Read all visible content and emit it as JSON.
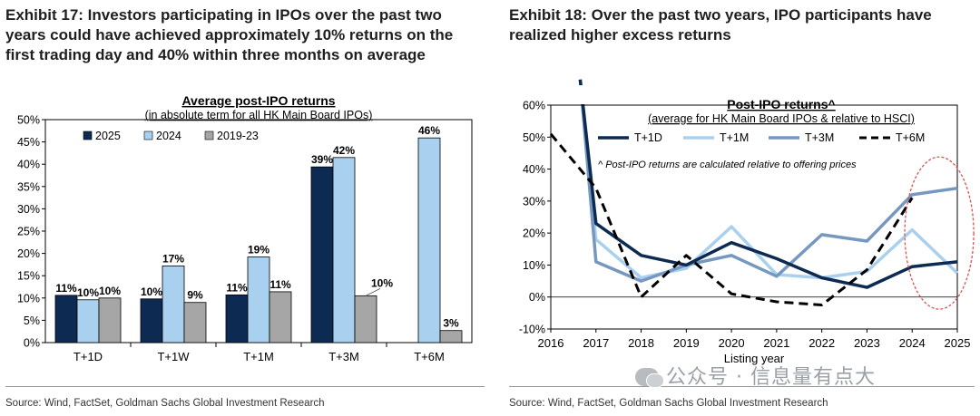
{
  "left": {
    "title": "Exhibit 17: Investors participating in IPOs over the past two years could have achieved approximately 10% returns on the first trading day and 40% within three months on average",
    "source": "Source: Wind, FactSet, Goldman Sachs Global Investment Research",
    "chart_data": {
      "type": "bar",
      "title": "Average post-IPO returns",
      "subtitle": "(in absolute term for all HK Main Board IPOs)",
      "categories": [
        "T+1D",
        "T+1W",
        "T+1M",
        "T+3M",
        "T+6M"
      ],
      "ylim": [
        0,
        50
      ],
      "yticks": [
        "0%",
        "5%",
        "10%",
        "15%",
        "20%",
        "25%",
        "30%",
        "35%",
        "40%",
        "45%",
        "50%"
      ],
      "series": [
        {
          "name": "2025",
          "color": "#0d2b52",
          "values": [
            10.6,
            9.8,
            10.7,
            39.4,
            null
          ],
          "labels": [
            "11%",
            "10%",
            "11%",
            "39%",
            ""
          ]
        },
        {
          "name": "2024",
          "color": "#a9d0ef",
          "values": [
            9.6,
            17.2,
            19.2,
            41.5,
            45.9
          ],
          "labels": [
            "10%",
            "17%",
            "19%",
            "42%",
            "46%"
          ]
        },
        {
          "name": "2019-23",
          "color": "#a6a6a6",
          "values": [
            10.0,
            9.0,
            11.4,
            10.5,
            2.7
          ],
          "labels": [
            "10%",
            "9%",
            "11%",
            "10%",
            "3%"
          ]
        }
      ]
    }
  },
  "right": {
    "title": "Exhibit 18: Over the past two years, IPO participants have realized higher excess returns",
    "source": "Source: Wind, FactSet, Goldman Sachs Global Investment Research",
    "chart_data": {
      "type": "line",
      "title": "Post-IPO returns^",
      "subtitle": "(average for HK Main Board IPOs & relative to HSCI)",
      "note": "^ Post-IPO returns are calculated relative to offering prices",
      "xlabel": "Listing year",
      "x": [
        2016,
        2017,
        2018,
        2019,
        2020,
        2021,
        2022,
        2023,
        2024,
        2025
      ],
      "ylim": [
        -10,
        60
      ],
      "yticks": [
        "-10%",
        "0%",
        "10%",
        "20%",
        "30%",
        "40%",
        "50%",
        "60%"
      ],
      "series": [
        {
          "name": "T+1D",
          "color": "#0d2b52",
          "dash": "solid",
          "values": [
            null,
            23,
            13,
            10,
            17,
            12,
            6,
            3,
            9.5,
            11
          ],
          "extended_start": 68
        },
        {
          "name": "T+1M",
          "color": "#a9d0ef",
          "dash": "solid",
          "values": [
            null,
            18,
            6,
            9,
            22,
            7,
            6,
            8,
            21,
            7.5
          ],
          "extended_start": 68
        },
        {
          "name": "T+3M",
          "color": "#7597c0",
          "dash": "solid",
          "values": [
            null,
            11,
            5,
            10,
            13,
            6.5,
            19.5,
            17.5,
            32,
            34
          ],
          "extended_start": 68
        },
        {
          "name": "T+6M",
          "color": "#000000",
          "dash": "dashed",
          "values": [
            51,
            34,
            0,
            13,
            1,
            -1.5,
            -2.5,
            8.5,
            31,
            null
          ]
        }
      ]
    },
    "watermark": "公众号 · 信息量有点大"
  }
}
